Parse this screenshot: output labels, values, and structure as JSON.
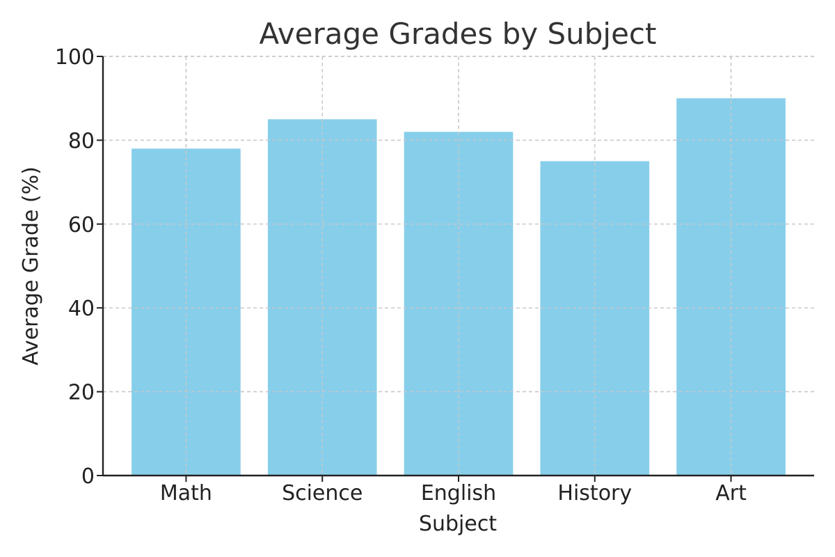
{
  "chart_data": {
    "type": "bar",
    "title": "Average Grades by Subject",
    "xlabel": "Subject",
    "ylabel": "Average Grade (%)",
    "categories": [
      "Math",
      "Science",
      "English",
      "History",
      "Art"
    ],
    "values": [
      78,
      85,
      82,
      75,
      90
    ],
    "ylim": [
      0,
      100
    ],
    "yticks": [
      0,
      20,
      40,
      60,
      80,
      100
    ],
    "grid": true,
    "bar_color": "#87CEEB"
  }
}
